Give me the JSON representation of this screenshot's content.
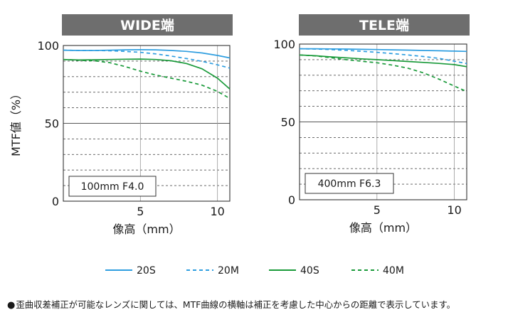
{
  "colors": {
    "solid_blue": "#2f9ee0",
    "dashed_blue": "#2f9ee0",
    "solid_green": "#1a9a3a",
    "dashed_green": "#1a9a3a",
    "header_bg": "#6e6e6e",
    "header_text": "#ffffff",
    "grid": "#555555"
  },
  "ylabel": "MTF値（%）",
  "legend": [
    {
      "name": "20S",
      "color": "#2f9ee0",
      "dashed": false
    },
    {
      "name": "20M",
      "color": "#2f9ee0",
      "dashed": true
    },
    {
      "name": "40S",
      "color": "#1a9a3a",
      "dashed": false
    },
    {
      "name": "40M",
      "color": "#1a9a3a",
      "dashed": true
    }
  ],
  "note": {
    "bullet": "●",
    "text": "歪曲収差補正が可能なレンズに関しては、MTF曲線の横軸は補正を考慮した中心からの距離で表示しています。"
  },
  "chart_data": [
    {
      "type": "line",
      "title": "WIDE端",
      "xlabel": "像高（mm）",
      "ylabel": "MTF値（%）",
      "xlim": [
        0,
        10.8
      ],
      "ylim": [
        0,
        100
      ],
      "xticks": [
        "5",
        "10"
      ],
      "yticks": [
        "0",
        "50",
        "100"
      ],
      "box_label": "100mm F4.0",
      "series": [
        {
          "name": "20S",
          "x": [
            0,
            1,
            2,
            3,
            4,
            5,
            6,
            7,
            8,
            9,
            10,
            10.8
          ],
          "y": [
            97,
            96.8,
            96.8,
            97,
            97.2,
            97.3,
            97.2,
            96.8,
            96.2,
            95.2,
            93.6,
            92
          ]
        },
        {
          "name": "20M",
          "x": [
            0,
            1,
            2,
            3,
            4,
            5,
            6,
            7,
            8,
            9,
            10,
            10.8
          ],
          "y": [
            97,
            96.8,
            96.8,
            96.6,
            96.2,
            95.6,
            94.6,
            93.2,
            91.6,
            89.8,
            87.6,
            85.5
          ]
        },
        {
          "name": "40S",
          "x": [
            0,
            1,
            2,
            3,
            4,
            5,
            6,
            7,
            8,
            9,
            10,
            10.8
          ],
          "y": [
            91,
            90.7,
            90.8,
            91,
            91.2,
            91.3,
            91,
            90.2,
            88.4,
            85,
            79,
            72
          ]
        },
        {
          "name": "40M",
          "x": [
            0,
            1,
            2,
            3,
            4,
            5,
            6,
            7,
            8,
            9,
            10,
            10.8
          ],
          "y": [
            91,
            90.5,
            90.2,
            89,
            86.5,
            83.5,
            81,
            79,
            77,
            74.5,
            70.5,
            66
          ]
        }
      ]
    },
    {
      "type": "line",
      "title": "TELE端",
      "xlabel": "像高（mm）",
      "ylabel": "MTF値（%）",
      "xlim": [
        0,
        10.8
      ],
      "ylim": [
        0,
        100
      ],
      "xticks": [
        "5",
        "10"
      ],
      "yticks": [
        "0",
        "50",
        "100"
      ],
      "box_label": "400mm F6.3",
      "series": [
        {
          "name": "20S",
          "x": [
            0,
            1,
            2,
            3,
            4,
            5,
            6,
            7,
            8,
            9,
            10,
            10.8
          ],
          "y": [
            97,
            97,
            96.9,
            96.8,
            96.6,
            96.5,
            96.3,
            96.1,
            95.9,
            95.7,
            95.5,
            95.3
          ]
        },
        {
          "name": "20M",
          "x": [
            0,
            1,
            2,
            3,
            4,
            5,
            6,
            7,
            8,
            9,
            10,
            10.8
          ],
          "y": [
            97,
            96.8,
            96.5,
            96,
            95.4,
            94.7,
            93.9,
            93,
            92,
            90.8,
            89,
            87.5
          ]
        },
        {
          "name": "40S",
          "x": [
            0,
            1,
            2,
            3,
            4,
            5,
            6,
            7,
            8,
            9,
            10,
            10.8
          ],
          "y": [
            93,
            92.5,
            91.8,
            91.2,
            90.5,
            90,
            89.4,
            88.8,
            88.2,
            87.6,
            86.8,
            85.5
          ]
        },
        {
          "name": "40M",
          "x": [
            0,
            1,
            2,
            3,
            4,
            5,
            6,
            7,
            8,
            9,
            10,
            10.8
          ],
          "y": [
            93,
            92.4,
            91.3,
            90,
            89,
            88,
            86.5,
            84.5,
            81.5,
            77.5,
            73,
            69.5
          ]
        }
      ]
    }
  ]
}
